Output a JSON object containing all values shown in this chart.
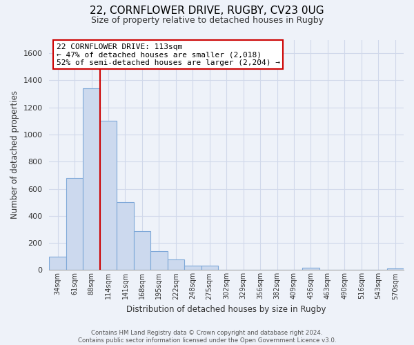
{
  "title_line1": "22, CORNFLOWER DRIVE, RUGBY, CV23 0UG",
  "title_line2": "Size of property relative to detached houses in Rugby",
  "xlabel": "Distribution of detached houses by size in Rugby",
  "ylabel": "Number of detached properties",
  "bar_labels": [
    "34sqm",
    "61sqm",
    "88sqm",
    "114sqm",
    "141sqm",
    "168sqm",
    "195sqm",
    "222sqm",
    "248sqm",
    "275sqm",
    "302sqm",
    "329sqm",
    "356sqm",
    "382sqm",
    "409sqm",
    "436sqm",
    "463sqm",
    "490sqm",
    "516sqm",
    "543sqm",
    "570sqm"
  ],
  "bar_values": [
    100,
    680,
    1340,
    1100,
    500,
    285,
    140,
    80,
    35,
    30,
    0,
    0,
    0,
    0,
    0,
    15,
    0,
    0,
    0,
    0,
    10
  ],
  "bar_color": "#ccd9ee",
  "bar_edge_color": "#7ea8d8",
  "grid_color": "#d0d8ea",
  "property_line_color": "#cc0000",
  "annotation_text": "22 CORNFLOWER DRIVE: 113sqm\n← 47% of detached houses are smaller (2,018)\n52% of semi-detached houses are larger (2,204) →",
  "annotation_box_color": "#ffffff",
  "annotation_box_edge": "#cc0000",
  "ylim": [
    0,
    1700
  ],
  "yticks": [
    0,
    200,
    400,
    600,
    800,
    1000,
    1200,
    1400,
    1600
  ],
  "footer_line1": "Contains HM Land Registry data © Crown copyright and database right 2024.",
  "footer_line2": "Contains public sector information licensed under the Open Government Licence v3.0.",
  "background_color": "#eef2f9"
}
